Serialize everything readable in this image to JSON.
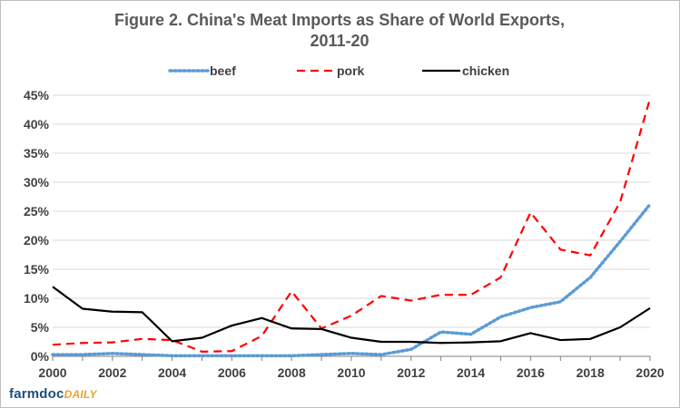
{
  "chart_data": {
    "type": "line",
    "title": [
      "Figure 2. China's Meat Imports as Share of World Exports,",
      "2011-20"
    ],
    "xlabel": "",
    "ylabel": "",
    "xlim": [
      2000,
      2020
    ],
    "ylim": [
      0,
      45
    ],
    "x_ticks": [
      "2000",
      "2002",
      "2004",
      "2006",
      "2008",
      "2010",
      "2012",
      "2014",
      "2016",
      "2018",
      "2020"
    ],
    "y_ticks": [
      "0%",
      "5%",
      "10%",
      "15%",
      "20%",
      "25%",
      "30%",
      "35%",
      "40%",
      "45%"
    ],
    "grid": "horizontal",
    "legend_position": "top",
    "x": [
      2000,
      2001,
      2002,
      2003,
      2004,
      2005,
      2006,
      2007,
      2008,
      2009,
      2010,
      2011,
      2012,
      2013,
      2014,
      2015,
      2016,
      2017,
      2018,
      2019,
      2020
    ],
    "series": [
      {
        "name": "beef",
        "color": "#5b9bd5",
        "style": "dotted",
        "values": [
          0.3,
          0.3,
          0.5,
          0.3,
          0.1,
          0.1,
          0.1,
          0.1,
          0.1,
          0.3,
          0.5,
          0.3,
          1.2,
          4.2,
          3.8,
          6.8,
          8.4,
          9.4,
          13.6,
          19.8,
          26.2
        ]
      },
      {
        "name": "pork",
        "color": "#ff0000",
        "style": "dashed",
        "values": [
          2.0,
          2.3,
          2.4,
          3.0,
          2.8,
          0.8,
          0.9,
          3.5,
          11.2,
          4.8,
          7.0,
          10.4,
          9.6,
          10.6,
          10.6,
          13.6,
          24.8,
          18.4,
          17.4,
          26.6,
          44.4
        ]
      },
      {
        "name": "chicken",
        "color": "#000000",
        "style": "solid",
        "values": [
          12.0,
          8.2,
          7.7,
          7.6,
          2.6,
          3.2,
          5.3,
          6.6,
          4.8,
          4.7,
          3.2,
          2.5,
          2.5,
          2.3,
          2.4,
          2.6,
          4.0,
          2.8,
          3.0,
          5.0,
          8.3
        ]
      }
    ]
  },
  "footer": {
    "logo_part1": "farmdoc",
    "logo_part2": "DAILY"
  }
}
